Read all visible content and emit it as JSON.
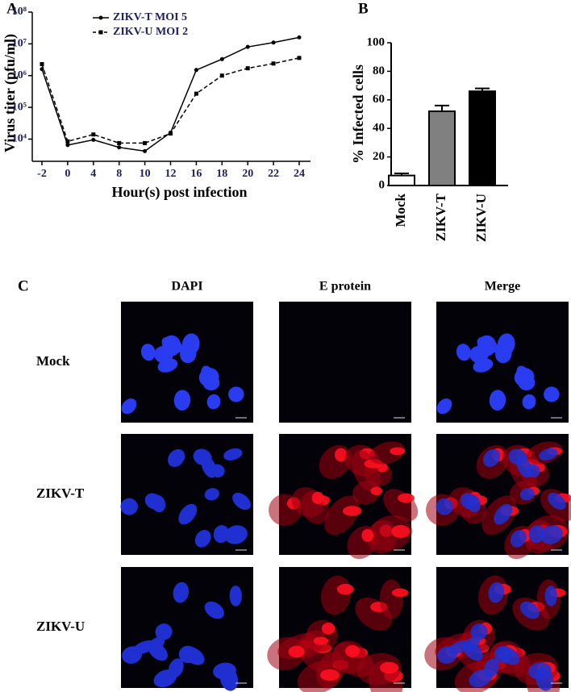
{
  "panel_labels": [
    "A",
    "B",
    "C"
  ],
  "chart_data": [
    {
      "type": "line",
      "y_label": "Virus titer (pfu/ml)",
      "x_label": "Hour(s) post infection",
      "categories": [
        "-2",
        "0",
        "4",
        "8",
        "10",
        "12",
        "16",
        "18",
        "20",
        "22",
        "24"
      ],
      "log_y": true,
      "ylim": [
        2000,
        100000000
      ],
      "yticks": [
        {
          "value": 10000,
          "label": "10⁴"
        },
        {
          "value": 100000,
          "label": "10⁵"
        },
        {
          "value": 1000000,
          "label": "10⁶"
        },
        {
          "value": 10000000,
          "label": "10⁷"
        },
        {
          "value": 100000000,
          "label": "10⁸"
        }
      ],
      "legend": "upper-left",
      "series": [
        {
          "name": "ZIKV-T MOI 5",
          "color": "#000000",
          "dash": false,
          "marker": "circle",
          "values": [
            1600000,
            6500,
            9500,
            5500,
            4200,
            16000,
            1500000,
            3300000,
            8000000,
            11000000,
            16000000
          ]
        },
        {
          "name": "ZIKV-U MOI 2",
          "color": "#000000",
          "dash": true,
          "marker": "square",
          "values": [
            2300000,
            8500,
            14000,
            7500,
            7500,
            15000,
            270000,
            1000000,
            1700000,
            2400000,
            3600000
          ]
        }
      ]
    },
    {
      "type": "bar",
      "y_label": "% Infected cells",
      "categories": [
        "Mock",
        "ZIKV-T",
        "ZIKV-U"
      ],
      "values": [
        7,
        52,
        66
      ],
      "errors": [
        1.5,
        4,
        2
      ],
      "colors": [
        "#ffffff",
        "#808080",
        "#000000"
      ],
      "ylim": [
        0,
        100
      ],
      "yticks": [
        0,
        20,
        40,
        60,
        80,
        100
      ]
    }
  ],
  "microscopy": {
    "columns": [
      "DAPI",
      "E protein",
      "Merge"
    ],
    "rows": [
      "Mock",
      "ZIKV-T",
      "ZIKV-U"
    ]
  }
}
